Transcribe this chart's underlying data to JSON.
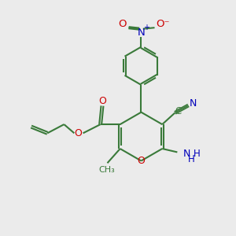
{
  "bg_color": "#ebebeb",
  "bond_color": "#3a7a3a",
  "bond_width": 1.5,
  "atom_colors": {
    "O": "#cc0000",
    "N": "#0000bb",
    "C": "#3a7a3a"
  },
  "figsize": [
    3.0,
    3.0
  ],
  "dpi": 100,
  "xlim": [
    0,
    10
  ],
  "ylim": [
    0,
    10
  ]
}
